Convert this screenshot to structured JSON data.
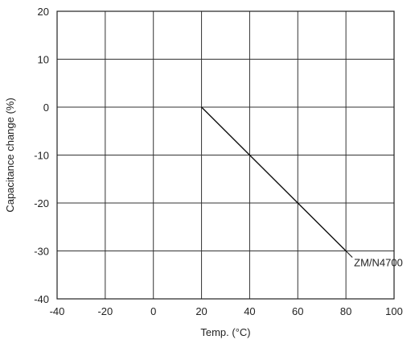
{
  "chart_data": {
    "type": "line",
    "title": "",
    "xlabel": "Temp. (°C)",
    "ylabel": "Capacitance change (%)",
    "xlim": [
      -40,
      100
    ],
    "ylim": [
      -40,
      20
    ],
    "xticks": [
      -40,
      -20,
      0,
      20,
      40,
      60,
      80,
      100
    ],
    "yticks": [
      -40,
      -30,
      -20,
      -10,
      0,
      10,
      20
    ],
    "grid": true,
    "series": [
      {
        "name": "ZM/N4700",
        "x": [
          20,
          40,
          60,
          80
        ],
        "y": [
          0,
          -10,
          -20,
          -30
        ]
      }
    ],
    "annotations": [
      {
        "text": "ZM/N4700",
        "x": 80,
        "y": -30
      }
    ]
  }
}
